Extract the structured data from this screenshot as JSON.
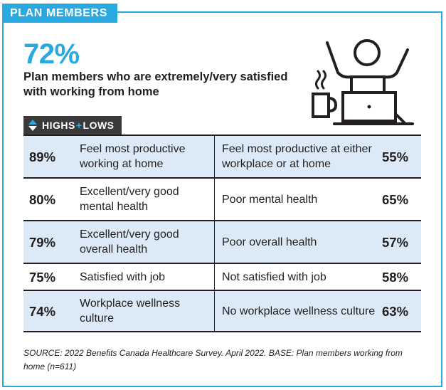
{
  "section_tab": "PLAN MEMBERS",
  "headline": {
    "stat": "72%",
    "text": "Plan members who are extremely/very satisfied with working from home"
  },
  "illustration": {
    "icon": "person-working-from-home-icon",
    "accent_color": "#29a9e0"
  },
  "badge": {
    "part1": "HIGHS",
    "plus": "+",
    "part2": "LOWS",
    "icon": "up-down-arrows-icon"
  },
  "rows": [
    {
      "high_pct": "89%",
      "high_label": "Feel most productive working at home",
      "low_label": "Feel most productive at either workplace or at home",
      "low_pct": "55%"
    },
    {
      "high_pct": "80%",
      "high_label": "Excellent/very good mental health",
      "low_label": "Poor mental health",
      "low_pct": "65%"
    },
    {
      "high_pct": "79%",
      "high_label": "Excellent/very good overall health",
      "low_label": "Poor overall health",
      "low_pct": "57%"
    },
    {
      "high_pct": "75%",
      "high_label": "Satisfied with job",
      "low_label": "Not satisfied with job",
      "low_pct": "58%"
    },
    {
      "high_pct": "74%",
      "high_label": "Workplace wellness culture",
      "low_label": "No workplace wellness culture",
      "low_pct": "63%"
    }
  ],
  "source": "SOURCE: 2022 Benefits Canada Healthcare Survey. April 2022. BASE: Plan members working from home (n=611)",
  "colors": {
    "accent": "#29a9e0",
    "row_shade": "#dbeaf6",
    "badge_bg": "#3a3a3c",
    "text": "#231f20"
  }
}
